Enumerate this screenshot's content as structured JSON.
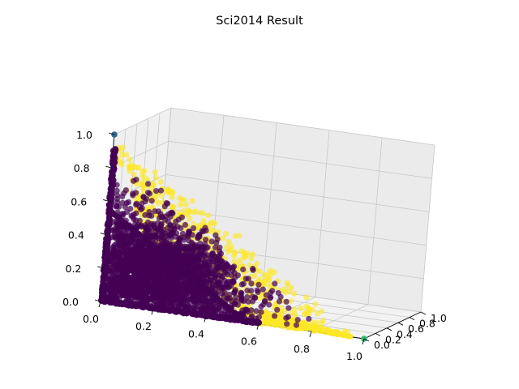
{
  "chart_data": {
    "type": "scatter",
    "title": "Sci2014 Result",
    "grid": true,
    "axes": {
      "x": {
        "ticks": [
          "0.0",
          "0.2",
          "0.4",
          "0.6",
          "0.8",
          "1.0"
        ],
        "range": [
          0,
          1
        ]
      },
      "y": {
        "ticks": [
          "0.0",
          "0.2",
          "0.4",
          "0.6",
          "0.8",
          "1.0"
        ],
        "range": [
          0,
          1
        ]
      },
      "z": {
        "ticks": [
          "0.0",
          "0.2",
          "0.4",
          "0.6",
          "0.8",
          "1.0"
        ],
        "range": [
          0,
          1
        ]
      }
    },
    "colors": {
      "purple": "#440154",
      "yellow": "#fde725",
      "blue": "#31688e",
      "green": "#35b779"
    },
    "series": [
      {
        "color": "#440154",
        "description": "dense cluster near origin region (x,y,z in [0,1], x+y+z <= 1)"
      },
      {
        "color": "#fde725",
        "description": "points near the x+y+z=1 plane and along edges"
      },
      {
        "color": "#31688e",
        "points": [
          [
            0,
            0,
            1
          ]
        ]
      },
      {
        "color": "#35b779",
        "points": [
          [
            1,
            0,
            0
          ]
        ]
      }
    ]
  }
}
